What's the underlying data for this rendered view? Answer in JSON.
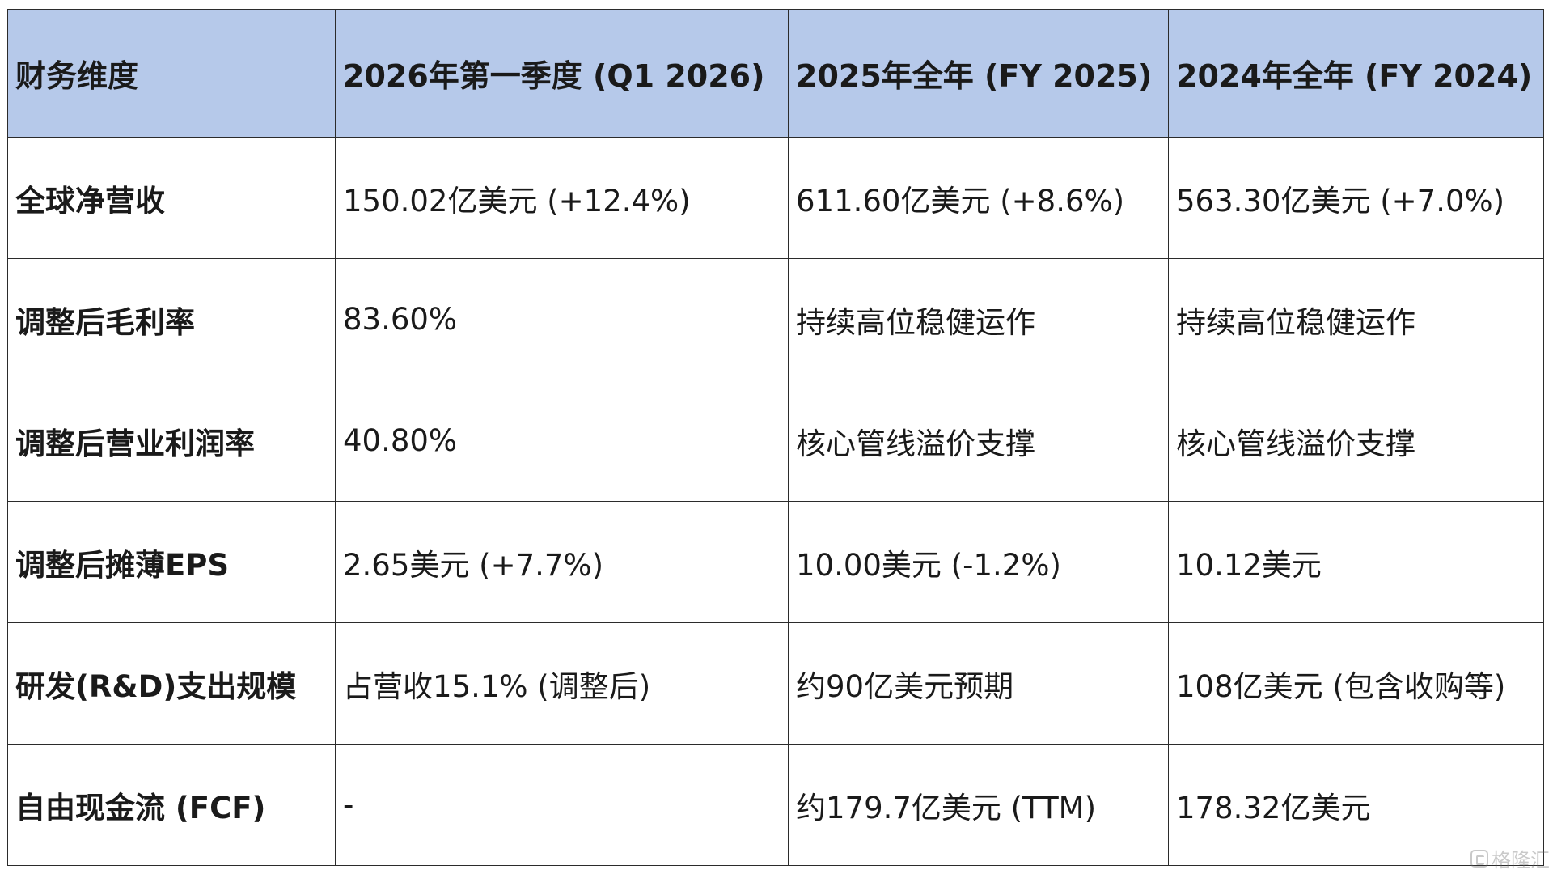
{
  "table": {
    "headers": [
      "财务维度",
      "2026年第一季度 (Q1 2026)",
      "2025年全年 (FY 2025)",
      "2024年全年 (FY 2024)"
    ],
    "rows": [
      [
        "全球净营收",
        "150.02亿美元 (+12.4%)",
        "611.60亿美元 (+8.6%)",
        "563.30亿美元 (+7.0%)"
      ],
      [
        "调整后毛利率",
        "83.60%",
        "持续高位稳健运作",
        "持续高位稳健运作"
      ],
      [
        "调整后营业利润率",
        "40.80%",
        "核心管线溢价支撑",
        "核心管线溢价支撑"
      ],
      [
        "调整后摊薄EPS",
        "2.65美元 (+7.7%)",
        "10.00美元 (-1.2%)",
        "10.12美元"
      ],
      [
        "研发(R&D)支出规模",
        "占营收15.1% (调整后)",
        "约90亿美元预期",
        "108亿美元 (包含收购等)"
      ],
      [
        "自由现金流 (FCF)",
        "-",
        "约179.7亿美元 (TTM)",
        "178.32亿美元"
      ]
    ]
  },
  "colors": {
    "header_bg": "#b6c9ea",
    "border": "#2b2b2b",
    "text": "#1a1a1a"
  },
  "watermark": {
    "icon": "brand-logo-icon",
    "text": "格隆汇"
  }
}
